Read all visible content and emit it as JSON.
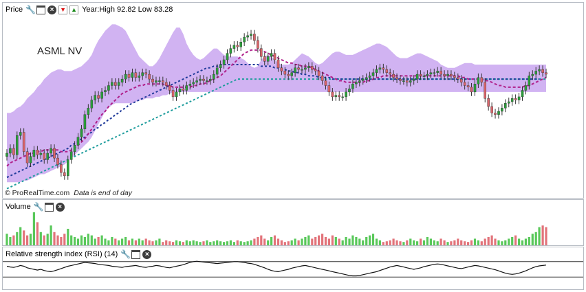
{
  "price_panel": {
    "title": "Price",
    "range_text": "Year:High 92.82 Low 83.28",
    "symbol": "ASML NV",
    "copyright": "© ProRealTime.com",
    "note": "Data is end of day",
    "icons": [
      "wrench-icon",
      "window-icon",
      "close-icon",
      "arrow-down-icon",
      "arrow-up-icon"
    ]
  },
  "volume_panel": {
    "title": "Volume",
    "icons": [
      "wrench-icon",
      "window-icon",
      "close-icon"
    ]
  },
  "rsi_panel": {
    "title": "Relative strength index (RSI) (14)",
    "icons": [
      "wrench-icon",
      "window-icon",
      "close-icon"
    ]
  },
  "colors": {
    "band_fill": "#c9a6f0",
    "up_candle": "#2a9e3a",
    "down_candle": "#d9646a",
    "ma_short": "#b0208a",
    "ma_medium": "#1f3a9a",
    "ma_long": "#1f9d9d",
    "volume_up": "#59c85a",
    "volume_down": "#e2737a",
    "rsi_line": "#111111"
  },
  "chart_data": {
    "type": "line",
    "title": "ASML NV",
    "candle_count": 160,
    "price_range": [
      83.28,
      92.82
    ],
    "close": [
      84.8,
      85.1,
      84.7,
      85.9,
      86.1,
      84.9,
      84.2,
      84.6,
      85.0,
      84.7,
      84.8,
      84.4,
      84.8,
      85.1,
      84.5,
      84.1,
      83.6,
      83.4,
      84.4,
      84.9,
      85.3,
      85.8,
      86.3,
      87.2,
      87.6,
      88.1,
      88.4,
      88.2,
      88.6,
      88.7,
      89.0,
      89.2,
      89.0,
      89.2,
      89.4,
      89.7,
      89.5,
      89.8,
      89.5,
      89.6,
      89.8,
      89.7,
      89.4,
      89.2,
      89.3,
      89.3,
      89.2,
      89.0,
      88.7,
      88.3,
      88.6,
      88.8,
      88.7,
      89.0,
      89.1,
      89.2,
      89.3,
      89.4,
      89.3,
      89.3,
      89.4,
      89.7,
      90.1,
      90.3,
      90.6,
      91.0,
      91.3,
      91.5,
      91.4,
      91.7,
      92.0,
      92.1,
      92.2,
      91.8,
      91.3,
      90.8,
      90.5,
      90.8,
      91.0,
      90.6,
      90.1,
      89.9,
      89.7,
      89.6,
      89.8,
      90.1,
      90.0,
      90.0,
      90.1,
      90.2,
      90.0,
      89.9,
      89.6,
      89.3,
      89.0,
      88.6,
      88.3,
      88.4,
      88.3,
      88.3,
      88.6,
      88.8,
      89.1,
      89.2,
      89.3,
      89.4,
      89.5,
      89.6,
      89.8,
      90.0,
      90.1,
      90.0,
      89.8,
      89.7,
      89.5,
      89.4,
      89.3,
      89.3,
      89.2,
      89.3,
      89.4,
      89.7,
      89.6,
      89.6,
      89.7,
      89.8,
      89.8,
      89.9,
      89.7,
      89.6,
      89.7,
      89.6,
      89.5,
      89.4,
      89.2,
      89.0,
      88.9,
      88.6,
      89.1,
      89.5,
      89.2,
      88.2,
      87.7,
      87.3,
      87.2,
      87.4,
      87.6,
      87.9,
      88.0,
      88.2,
      88.1,
      88.3,
      88.7,
      89.0,
      89.6,
      89.7,
      89.9,
      90.0,
      89.8,
      89.7
    ],
    "bb_upper": [
      87.3,
      87.3,
      87.4,
      87.6,
      87.7,
      87.9,
      88.2,
      88.4,
      88.6,
      88.9,
      89.1,
      89.4,
      89.6,
      89.8,
      89.9,
      90.0,
      90.0,
      89.9,
      89.9,
      89.9,
      90.0,
      90.1,
      90.2,
      90.4,
      90.6,
      90.9,
      91.4,
      91.8,
      92.1,
      92.4,
      92.6,
      92.8,
      92.8,
      92.7,
      92.6,
      92.4,
      92.0,
      91.6,
      91.2,
      90.8,
      90.6,
      90.4,
      90.2,
      90.2,
      90.4,
      90.7,
      91.1,
      91.5,
      91.9,
      92.3,
      92.6,
      92.6,
      92.2,
      91.6,
      91.2,
      90.9,
      90.7,
      90.6,
      90.7,
      90.9,
      91.1,
      91.3,
      91.3,
      91.1,
      90.9,
      90.8,
      90.8,
      90.8,
      90.8,
      90.7,
      90.6,
      90.4,
      90.2,
      90.1,
      90.2,
      90.6,
      90.8,
      90.9,
      90.8,
      90.6,
      90.4,
      90.3,
      90.3,
      90.3,
      90.4,
      90.6,
      90.8,
      91.0,
      90.9,
      90.8,
      90.6,
      90.4,
      90.3,
      90.4,
      90.6,
      90.8,
      91.0,
      91.1,
      91.1,
      91.0,
      90.9,
      90.9,
      90.9,
      91.0,
      91.1,
      91.2,
      91.3,
      91.4,
      91.5,
      91.6,
      91.6,
      91.5,
      91.4,
      91.2,
      91.0,
      90.8,
      90.7,
      90.7,
      90.7,
      90.8,
      90.9,
      91.0,
      91.0,
      90.9,
      90.8,
      90.7,
      90.6,
      90.5,
      90.3,
      90.2,
      90.1,
      90.1,
      90.1,
      90.2,
      90.3,
      90.4,
      90.4,
      90.4,
      90.3,
      90.3,
      90.3,
      90.3,
      90.3,
      90.3,
      90.3,
      90.3,
      90.3,
      90.3,
      90.3,
      90.3,
      90.3,
      90.3,
      90.3,
      90.3,
      90.3,
      90.3,
      90.3,
      90.3,
      90.3,
      90.3
    ],
    "bb_lower": [
      83.0,
      83.0,
      83.0,
      83.0,
      83.0,
      83.1,
      83.1,
      83.2,
      83.3,
      83.4,
      83.5,
      83.5,
      83.6,
      83.7,
      83.8,
      83.9,
      84.0,
      84.1,
      84.3,
      84.5,
      84.7,
      84.9,
      85.1,
      85.3,
      85.5,
      85.8,
      86.2,
      86.6,
      87.0,
      87.4,
      87.6,
      87.8,
      87.9,
      87.9,
      87.9,
      87.9,
      87.9,
      87.9,
      88.0,
      88.1,
      88.1,
      88.2,
      88.2,
      88.2,
      88.3,
      88.3,
      88.4,
      88.4,
      88.5,
      88.6,
      88.6,
      88.6,
      88.6,
      88.6,
      88.6,
      88.6,
      88.6,
      88.6,
      88.6,
      88.6,
      88.6,
      88.6,
      88.6,
      88.6,
      88.6,
      88.6,
      88.6,
      88.6,
      88.6,
      88.6,
      88.6,
      88.6,
      88.6,
      88.6,
      88.6,
      88.6,
      88.6,
      88.6,
      88.6,
      88.6,
      88.6,
      88.6,
      88.6,
      88.6,
      88.6,
      88.6,
      88.6,
      88.6,
      88.6,
      88.6,
      88.6,
      88.6,
      88.6,
      88.6,
      88.6,
      88.6,
      88.6,
      88.6,
      88.6,
      88.6,
      88.6,
      88.6,
      88.6,
      88.6,
      88.6,
      88.6,
      88.6,
      88.6,
      88.6,
      88.6,
      88.6,
      88.6,
      88.6,
      88.6,
      88.6,
      88.6,
      88.6,
      88.6,
      88.6,
      88.6,
      88.6,
      88.6,
      88.6,
      88.6,
      88.6,
      88.6,
      88.6,
      88.6,
      88.6,
      88.6,
      88.6,
      88.6,
      88.6,
      88.6,
      88.6,
      88.6,
      88.6,
      88.6,
      88.6,
      88.6,
      88.6,
      88.6,
      88.6,
      88.6,
      88.6,
      88.6,
      88.6,
      88.6,
      88.6,
      88.6,
      88.6,
      88.6,
      88.6,
      88.6,
      88.6,
      88.6,
      88.6,
      88.6,
      88.6,
      88.6,
      88.6,
      88.6
    ],
    "ma_short": [
      84.0,
      84.2,
      84.3,
      84.4,
      84.5,
      84.6,
      84.7,
      84.8,
      84.8,
      84.9,
      84.9,
      85.0,
      85.0,
      85.0,
      85.0,
      85.0,
      84.9,
      84.9,
      84.9,
      85.0,
      85.1,
      85.3,
      85.5,
      85.7,
      86.0,
      86.3,
      86.6,
      86.9,
      87.2,
      87.4,
      87.7,
      87.9,
      88.1,
      88.3,
      88.5,
      88.6,
      88.7,
      88.8,
      88.9,
      89.0,
      89.0,
      89.1,
      89.1,
      89.1,
      89.1,
      89.1,
      89.1,
      89.0,
      89.0,
      88.9,
      88.9,
      88.9,
      88.9,
      88.9,
      88.9,
      89.0,
      89.0,
      89.1,
      89.1,
      89.2,
      89.3,
      89.4,
      89.5,
      89.6,
      89.8,
      90.0,
      90.2,
      90.4,
      90.6,
      90.8,
      91.0,
      91.1,
      91.2,
      91.2,
      91.2,
      91.2,
      91.1,
      91.0,
      90.9,
      90.8,
      90.7,
      90.6,
      90.5,
      90.4,
      90.4,
      90.3,
      90.3,
      90.2,
      90.2,
      90.2,
      90.1,
      90.0,
      89.9,
      89.8,
      89.7,
      89.6,
      89.5,
      89.4,
      89.3,
      89.3,
      89.2,
      89.2,
      89.2,
      89.2,
      89.2,
      89.2,
      89.3,
      89.3,
      89.4,
      89.5,
      89.5,
      89.6,
      89.6,
      89.6,
      89.6,
      89.6,
      89.6,
      89.6,
      89.6,
      89.6,
      89.6,
      89.6,
      89.6,
      89.6,
      89.6,
      89.6,
      89.6,
      89.6,
      89.6,
      89.6,
      89.6,
      89.6,
      89.6,
      89.6,
      89.5,
      89.5,
      89.4,
      89.4,
      89.4,
      89.4,
      89.4,
      89.3,
      89.3,
      89.2,
      89.1,
      89.0,
      89.0,
      88.9,
      88.9,
      88.9,
      88.9,
      88.9,
      88.9,
      89.0,
      89.0,
      89.1,
      89.2,
      89.3,
      89.4,
      89.5
    ],
    "ma_medium": [
      83.3,
      83.4,
      83.5,
      83.6,
      83.7,
      83.8,
      83.9,
      84.0,
      84.1,
      84.2,
      84.3,
      84.4,
      84.5,
      84.6,
      84.7,
      84.8,
      84.9,
      85.0,
      85.1,
      85.3,
      85.4,
      85.5,
      85.7,
      85.8,
      86.0,
      86.1,
      86.3,
      86.4,
      86.6,
      86.7,
      86.9,
      87.0,
      87.2,
      87.3,
      87.5,
      87.6,
      87.8,
      87.9,
      88.0,
      88.1,
      88.2,
      88.3,
      88.4,
      88.5,
      88.6,
      88.7,
      88.8,
      88.9,
      89.0,
      89.1,
      89.2,
      89.3,
      89.4,
      89.5,
      89.6,
      89.7,
      89.8,
      89.9,
      90.0,
      90.1,
      90.1,
      90.2,
      90.2,
      90.3,
      90.3,
      90.3,
      90.3,
      90.3,
      90.3,
      90.3,
      90.3,
      90.3,
      90.3,
      90.3,
      90.3,
      90.2,
      90.2,
      90.2,
      90.2,
      90.1,
      90.1,
      90.0,
      90.0,
      89.9,
      89.9,
      89.8,
      89.8,
      89.7,
      89.7,
      89.6,
      89.6,
      89.6,
      89.5,
      89.5,
      89.5,
      89.5,
      89.4,
      89.4,
      89.4,
      89.4,
      89.4,
      89.4,
      89.4,
      89.4,
      89.4,
      89.4,
      89.4,
      89.4,
      89.4,
      89.4,
      89.4,
      89.4,
      89.4,
      89.4,
      89.4,
      89.4,
      89.4,
      89.4,
      89.4,
      89.4,
      89.4,
      89.4,
      89.4,
      89.4,
      89.4,
      89.4,
      89.4,
      89.4,
      89.4,
      89.4,
      89.4,
      89.4,
      89.4,
      89.4,
      89.4,
      89.4,
      89.4,
      89.4,
      89.4,
      89.4,
      89.4,
      89.4,
      89.4,
      89.4,
      89.4,
      89.4,
      89.4,
      89.4,
      89.4,
      89.4,
      89.4,
      89.4,
      89.4,
      89.4,
      89.4,
      89.4,
      89.4,
      89.4
    ],
    "ma_long": [
      82.6,
      82.7,
      82.8,
      82.9,
      83.0,
      83.1,
      83.2,
      83.3,
      83.4,
      83.5,
      83.6,
      83.7,
      83.8,
      83.9,
      84.0,
      84.1,
      84.2,
      84.3,
      84.4,
      84.5,
      84.6,
      84.7,
      84.8,
      84.9,
      85.0,
      85.1,
      85.2,
      85.3,
      85.4,
      85.5,
      85.6,
      85.7,
      85.8,
      85.9,
      86.0,
      86.1,
      86.2,
      86.3,
      86.4,
      86.5,
      86.6,
      86.7,
      86.8,
      86.9,
      87.0,
      87.1,
      87.2,
      87.3,
      87.4,
      87.5,
      87.6,
      87.7,
      87.8,
      87.9,
      88.0,
      88.1,
      88.2,
      88.3,
      88.4,
      88.5,
      88.6,
      88.7,
      88.8,
      88.9,
      89.0,
      89.1,
      89.2,
      89.3,
      89.4,
      89.4,
      89.4,
      89.4,
      89.4,
      89.4,
      89.4,
      89.4,
      89.4,
      89.4,
      89.4,
      89.4,
      89.4,
      89.4,
      89.4,
      89.4,
      89.4,
      89.4,
      89.4,
      89.4,
      89.4,
      89.4,
      89.4,
      89.4,
      89.4,
      89.4,
      89.4,
      89.4,
      89.4,
      89.4,
      89.4,
      89.4,
      89.4,
      89.4,
      89.4,
      89.4,
      89.4,
      89.4,
      89.4,
      89.4,
      89.4,
      89.4,
      89.4,
      89.4,
      89.4,
      89.4,
      89.4,
      89.4,
      89.4,
      89.4,
      89.4,
      89.4,
      89.4,
      89.4,
      89.4,
      89.4,
      89.4,
      89.4,
      89.4,
      89.4,
      89.4,
      89.4,
      89.4,
      89.4,
      89.4,
      89.4,
      89.4,
      89.4,
      89.4,
      89.4,
      89.4,
      89.4,
      89.4,
      89.4,
      89.4,
      89.4,
      89.4,
      89.4,
      89.4,
      89.4,
      89.4,
      89.4,
      89.4,
      89.4,
      89.4,
      89.4,
      89.4,
      89.4,
      89.4,
      89.4,
      89.4,
      89.4
    ],
    "volume_ratio": [
      0.35,
      0.25,
      0.3,
      0.4,
      0.55,
      0.45,
      0.3,
      0.35,
      1.0,
      0.7,
      0.4,
      0.3,
      0.35,
      0.6,
      0.4,
      0.3,
      0.25,
      0.35,
      0.5,
      0.3,
      0.25,
      0.2,
      0.3,
      0.25,
      0.35,
      0.3,
      0.2,
      0.25,
      0.3,
      0.2,
      0.15,
      0.25,
      0.2,
      0.15,
      0.2,
      0.25,
      0.15,
      0.2,
      0.15,
      0.2,
      0.15,
      0.2,
      0.15,
      0.12,
      0.15,
      0.2,
      0.1,
      0.15,
      0.12,
      0.1,
      0.15,
      0.12,
      0.1,
      0.15,
      0.12,
      0.15,
      0.12,
      0.1,
      0.12,
      0.15,
      0.1,
      0.12,
      0.15,
      0.12,
      0.1,
      0.12,
      0.15,
      0.1,
      0.15,
      0.12,
      0.1,
      0.12,
      0.15,
      0.2,
      0.25,
      0.3,
      0.2,
      0.15,
      0.25,
      0.3,
      0.2,
      0.15,
      0.1,
      0.12,
      0.15,
      0.2,
      0.15,
      0.2,
      0.25,
      0.3,
      0.2,
      0.25,
      0.3,
      0.35,
      0.25,
      0.2,
      0.3,
      0.25,
      0.2,
      0.15,
      0.25,
      0.2,
      0.3,
      0.25,
      0.2,
      0.15,
      0.25,
      0.3,
      0.35,
      0.2,
      0.15,
      0.1,
      0.12,
      0.15,
      0.2,
      0.15,
      0.12,
      0.1,
      0.15,
      0.2,
      0.15,
      0.12,
      0.2,
      0.15,
      0.25,
      0.2,
      0.15,
      0.12,
      0.2,
      0.15,
      0.1,
      0.12,
      0.15,
      0.2,
      0.15,
      0.12,
      0.1,
      0.15,
      0.2,
      0.15,
      0.12,
      0.2,
      0.25,
      0.3,
      0.2,
      0.15,
      0.12,
      0.15,
      0.2,
      0.25,
      0.3,
      0.2,
      0.15,
      0.2,
      0.25,
      0.35,
      0.4,
      0.55,
      0.6,
      0.55
    ],
    "rsi": [
      58,
      56,
      55,
      57,
      60,
      58,
      54,
      52,
      50,
      48,
      50,
      47,
      45,
      44,
      46,
      49,
      52,
      55,
      58,
      60,
      62,
      64,
      66,
      68,
      67,
      66,
      65,
      63,
      62,
      61,
      60,
      58,
      57,
      56,
      55,
      57,
      58,
      59,
      60,
      58,
      56,
      55,
      57,
      58,
      60,
      59,
      57,
      55,
      54,
      56,
      58,
      60,
      62,
      65,
      68,
      70,
      71,
      70,
      69,
      68,
      67,
      66,
      65,
      66,
      67,
      68,
      69,
      70,
      70,
      69,
      68,
      66,
      65,
      63,
      60,
      57,
      54,
      50,
      47,
      45,
      44,
      46,
      48,
      50,
      53,
      55,
      57,
      59,
      60,
      58,
      56,
      54,
      52,
      50,
      48,
      46,
      44,
      42,
      40,
      38,
      36,
      34,
      33,
      33,
      34,
      36,
      38,
      40,
      42,
      44,
      47,
      50,
      53,
      56,
      58,
      60,
      58,
      56,
      54,
      52,
      50,
      52,
      54,
      57,
      59,
      61,
      63,
      64,
      63,
      61,
      59,
      57,
      55,
      53,
      52,
      54,
      56,
      58,
      60,
      59,
      57,
      55,
      53,
      51,
      49,
      46,
      43,
      40,
      38,
      37,
      38,
      40,
      43,
      46,
      50,
      54,
      57,
      59,
      60,
      61
    ],
    "rsi_levels": [
      70,
      30
    ]
  }
}
